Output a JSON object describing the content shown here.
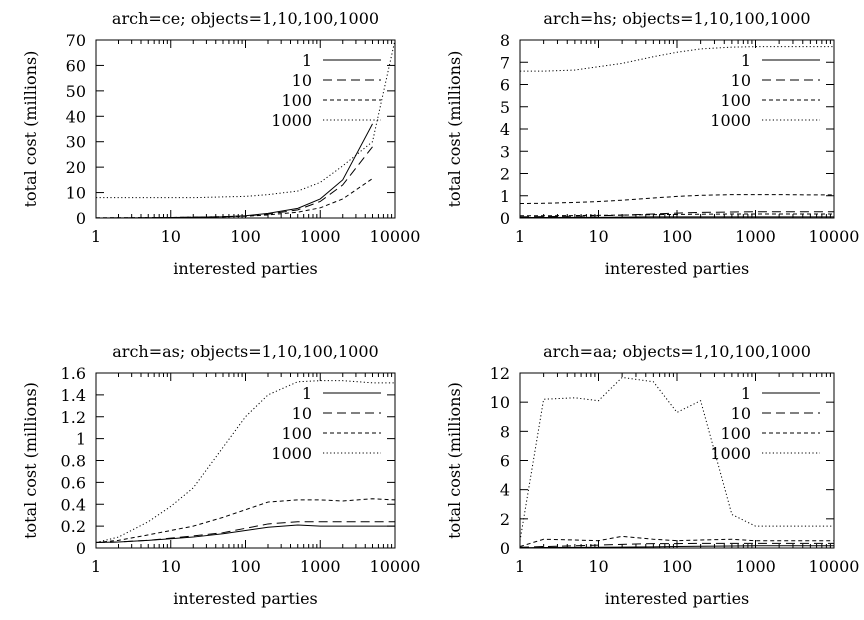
{
  "chart_data": [
    {
      "type": "line",
      "title": "arch=ce; objects=1,10,100,1000",
      "xlabel": "interested parties",
      "ylabel": "total cost (millions)",
      "xscale": "log",
      "xlim": [
        1,
        10000
      ],
      "ylim": [
        0,
        70
      ],
      "xticks": [
        1,
        10,
        100,
        1000,
        10000
      ],
      "yticks": [
        0,
        10,
        20,
        30,
        40,
        50,
        60,
        70
      ],
      "grid": false,
      "legend": "top-right",
      "x": [
        1,
        2,
        5,
        10,
        20,
        50,
        100,
        200,
        500,
        1000,
        2000,
        5000,
        10000
      ],
      "series": [
        {
          "name": "1",
          "dash": "solid",
          "values": [
            0,
            0.05,
            0.1,
            0.2,
            0.3,
            0.5,
            0.9,
            1.8,
            3.8,
            7.5,
            15,
            37,
            null
          ]
        },
        {
          "name": "10",
          "dash": "long",
          "values": [
            0,
            0.05,
            0.1,
            0.2,
            0.3,
            0.5,
            0.8,
            1.5,
            3.2,
            6.5,
            13,
            28,
            null
          ]
        },
        {
          "name": "100",
          "dash": "short",
          "values": [
            0.1,
            0.1,
            0.15,
            0.2,
            0.3,
            0.5,
            0.7,
            1.2,
            2.3,
            4,
            7.5,
            15.5,
            null
          ]
        },
        {
          "name": "1000",
          "dash": "dot",
          "values": [
            8,
            8,
            8,
            8,
            8,
            8.3,
            8.5,
            9.2,
            10.6,
            14,
            20.5,
            30,
            70
          ]
        }
      ]
    },
    {
      "type": "line",
      "title": "arch=hs; objects=1,10,100,1000",
      "xlabel": "interested parties",
      "ylabel": "total cost (millions)",
      "xscale": "log",
      "xlim": [
        1,
        10000
      ],
      "ylim": [
        0,
        8
      ],
      "xticks": [
        1,
        10,
        100,
        1000,
        10000
      ],
      "yticks": [
        0,
        1,
        2,
        3,
        4,
        5,
        6,
        7,
        8
      ],
      "grid": false,
      "legend": "top-right",
      "x": [
        1,
        2,
        5,
        10,
        20,
        50,
        100,
        200,
        500,
        1000,
        2000,
        5000,
        10000
      ],
      "series": [
        {
          "name": "1",
          "dash": "solid",
          "values": [
            0.02,
            0.02,
            0.03,
            0.03,
            0.04,
            0.05,
            0.05,
            0.05,
            0.05,
            0.05,
            0.05,
            0.05,
            0.05
          ]
        },
        {
          "name": "10",
          "dash": "long",
          "values": [
            0.05,
            0.06,
            0.08,
            0.1,
            0.13,
            0.18,
            0.22,
            0.25,
            0.27,
            0.28,
            0.28,
            0.28,
            0.28
          ]
        },
        {
          "name": "100",
          "dash": "short",
          "values": [
            0.1,
            0.1,
            0.11,
            0.12,
            0.13,
            0.15,
            0.16,
            0.17,
            0.18,
            0.18,
            0.18,
            0.18,
            0.18
          ]
        },
        {
          "name": "1000",
          "dash": "dot",
          "values": [
            6.6,
            6.6,
            6.65,
            6.8,
            6.95,
            7.25,
            7.45,
            7.6,
            7.68,
            7.7,
            7.7,
            7.7,
            7.7
          ]
        },
        {
          "name": "",
          "dash": "short",
          "values": [
            0.65,
            0.66,
            0.7,
            0.74,
            0.8,
            0.9,
            0.97,
            1.02,
            1.05,
            1.05,
            1.05,
            1.04,
            1.04
          ]
        }
      ]
    },
    {
      "type": "line",
      "title": "arch=as; objects=1,10,100,1000",
      "xlabel": "interested parties",
      "ylabel": "total cost (millions)",
      "xscale": "log",
      "xlim": [
        1,
        10000
      ],
      "ylim": [
        0,
        1.6
      ],
      "xticks": [
        1,
        10,
        100,
        1000,
        10000
      ],
      "yticks": [
        0,
        0.2,
        0.4,
        0.6,
        0.8,
        1,
        1.2,
        1.4,
        1.6
      ],
      "grid": false,
      "legend": "top-right",
      "x": [
        1,
        2,
        5,
        10,
        20,
        50,
        100,
        200,
        500,
        1000,
        2000,
        5000,
        10000
      ],
      "series": [
        {
          "name": "1",
          "dash": "solid",
          "values": [
            0.05,
            0.055,
            0.07,
            0.085,
            0.1,
            0.13,
            0.16,
            0.19,
            0.21,
            0.2,
            0.2,
            0.2,
            0.2
          ]
        },
        {
          "name": "10",
          "dash": "long",
          "values": [
            0.05,
            0.055,
            0.07,
            0.09,
            0.11,
            0.14,
            0.18,
            0.22,
            0.24,
            0.24,
            0.24,
            0.24,
            0.24
          ]
        },
        {
          "name": "100",
          "dash": "short",
          "values": [
            0.05,
            0.07,
            0.12,
            0.16,
            0.2,
            0.28,
            0.35,
            0.42,
            0.44,
            0.44,
            0.43,
            0.45,
            0.44
          ]
        },
        {
          "name": "1000",
          "dash": "dot",
          "values": [
            0.05,
            0.1,
            0.24,
            0.38,
            0.55,
            0.92,
            1.2,
            1.4,
            1.52,
            1.53,
            1.53,
            1.51,
            1.51
          ]
        }
      ]
    },
    {
      "type": "line",
      "title": "arch=aa; objects=1,10,100,1000",
      "xlabel": "interested parties",
      "ylabel": "total cost (millions)",
      "xscale": "log",
      "xlim": [
        1,
        10000
      ],
      "ylim": [
        0,
        12
      ],
      "xticks": [
        1,
        10,
        100,
        1000,
        10000
      ],
      "yticks": [
        0,
        2,
        4,
        6,
        8,
        10,
        12
      ],
      "grid": false,
      "legend": "top-right",
      "x": [
        1,
        2,
        5,
        10,
        20,
        50,
        100,
        200,
        500,
        1000,
        2000,
        5000,
        10000
      ],
      "series": [
        {
          "name": "1",
          "dash": "solid",
          "values": [
            0.02,
            0.03,
            0.04,
            0.05,
            0.06,
            0.08,
            0.1,
            0.12,
            0.14,
            0.15,
            0.15,
            0.15,
            0.15
          ]
        },
        {
          "name": "10",
          "dash": "long",
          "values": [
            0.05,
            0.1,
            0.15,
            0.2,
            0.25,
            0.3,
            0.3,
            0.32,
            0.32,
            0.32,
            0.32,
            0.32,
            0.32
          ]
        },
        {
          "name": "100",
          "dash": "short",
          "values": [
            0.1,
            0.6,
            0.55,
            0.5,
            0.8,
            0.6,
            0.5,
            0.55,
            0.6,
            0.5,
            0.5,
            0.5,
            0.5
          ]
        },
        {
          "name": "1000",
          "dash": "dot",
          "values": [
            0.5,
            10.2,
            10.3,
            10.1,
            11.7,
            11.4,
            9.3,
            10.1,
            2.3,
            1.5,
            1.5,
            1.5,
            1.5
          ]
        }
      ]
    }
  ]
}
